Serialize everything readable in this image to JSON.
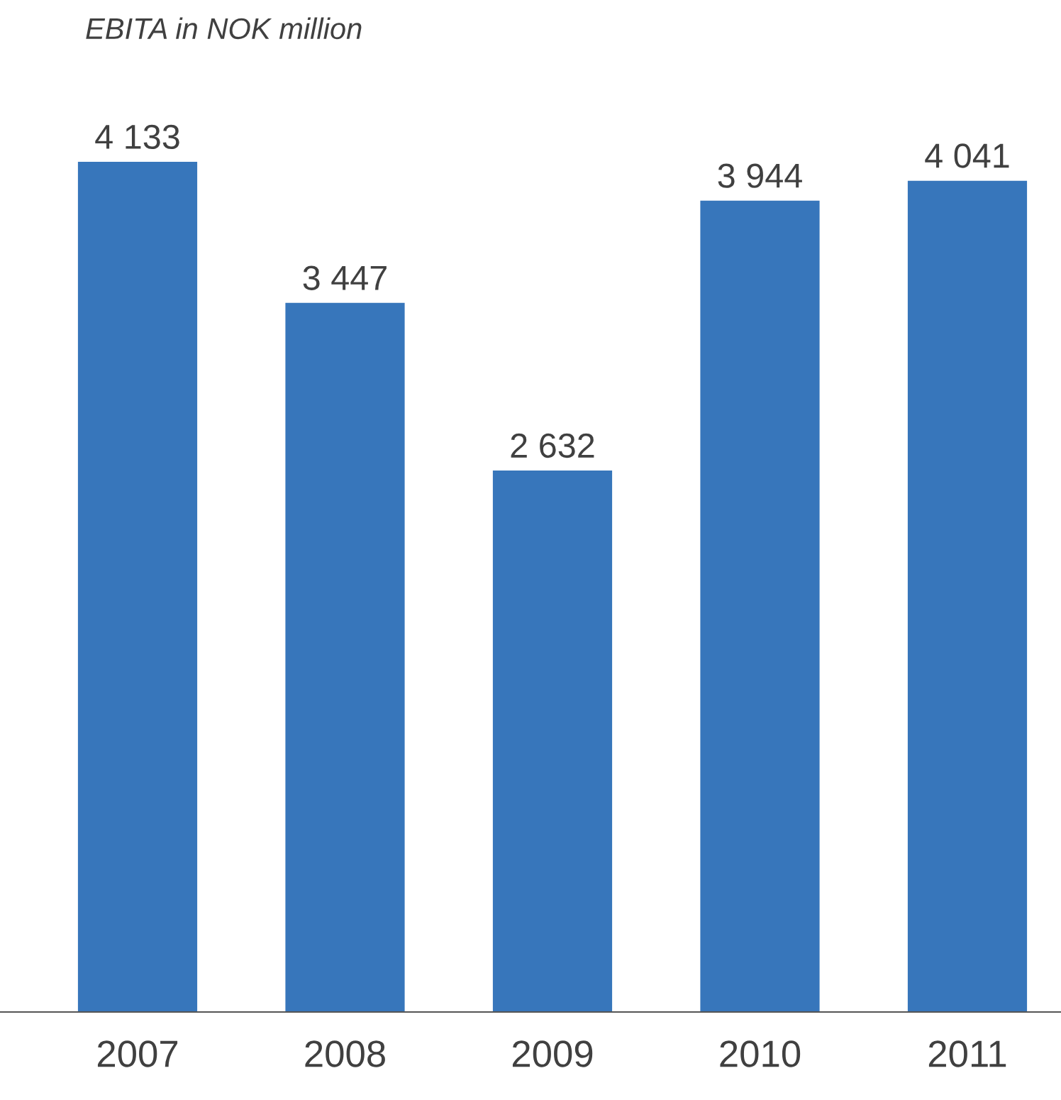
{
  "chart_data": {
    "type": "bar",
    "title": "EBITA in NOK million",
    "categories": [
      "2007",
      "2008",
      "2009",
      "2010",
      "2011"
    ],
    "values": [
      4133,
      3447,
      2632,
      3944,
      4041
    ],
    "value_labels": [
      "4 133",
      "3 447",
      "2 632",
      "3 944",
      "4 041"
    ],
    "color": "#3776bb",
    "grid": false,
    "legend": false
  }
}
